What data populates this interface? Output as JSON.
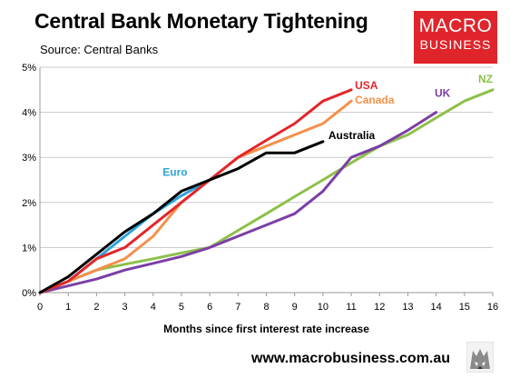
{
  "header": {
    "title": "Central Bank Monetary Tightening",
    "subtitle": "Source: Central Banks"
  },
  "logo": {
    "line1": "MACRO",
    "line2": "BUSINESS",
    "color": "#e0242b"
  },
  "footer": {
    "url": "www.macrobusiness.com.au",
    "icon": "wolf-logo-icon"
  },
  "chart_data": {
    "type": "line",
    "title": "Central Bank Monetary Tightening",
    "xlabel": "Months since first interest rate increase",
    "ylabel": "",
    "xlim": [
      0,
      16
    ],
    "ylim": [
      0,
      5
    ],
    "x_ticks": [
      "0",
      "1",
      "2",
      "3",
      "4",
      "5",
      "6",
      "7",
      "8",
      "9",
      "10",
      "11",
      "12",
      "13",
      "14",
      "15",
      "16"
    ],
    "y_ticks": [
      "0%",
      "1%",
      "2%",
      "3%",
      "4%",
      "5%"
    ],
    "grid": "horizontal",
    "legend": "inline labels",
    "series": [
      {
        "name": "Euro",
        "color": "#2ea3d8",
        "points": [
          [
            0,
            0
          ],
          [
            1,
            0.25
          ],
          [
            2,
            0.75
          ],
          [
            3,
            1.25
          ],
          [
            4,
            1.75
          ],
          [
            5,
            2.15
          ],
          [
            6,
            2.5
          ]
        ]
      },
      {
        "name": "NZ",
        "color": "#8dc04a",
        "points": [
          [
            0,
            0
          ],
          [
            1,
            0.25
          ],
          [
            2,
            0.5
          ],
          [
            3,
            0.63
          ],
          [
            4,
            0.75
          ],
          [
            5,
            0.88
          ],
          [
            6,
            1.0
          ],
          [
            7,
            1.38
          ],
          [
            8,
            1.75
          ],
          [
            9,
            2.13
          ],
          [
            10,
            2.5
          ],
          [
            11,
            2.88
          ],
          [
            12,
            3.25
          ],
          [
            13,
            3.5
          ],
          [
            14,
            3.88
          ],
          [
            15,
            4.25
          ],
          [
            16,
            4.5
          ]
        ]
      },
      {
        "name": "UK",
        "color": "#7b3fa6",
        "points": [
          [
            0,
            0
          ],
          [
            1,
            0.15
          ],
          [
            2,
            0.3
          ],
          [
            3,
            0.5
          ],
          [
            4,
            0.65
          ],
          [
            5,
            0.8
          ],
          [
            6,
            1.0
          ],
          [
            7,
            1.25
          ],
          [
            8,
            1.5
          ],
          [
            9,
            1.75
          ],
          [
            10,
            2.25
          ],
          [
            11,
            3.0
          ],
          [
            12,
            3.25
          ],
          [
            13,
            3.6
          ],
          [
            14,
            4.0
          ]
        ]
      },
      {
        "name": "Canada",
        "color": "#f4904a",
        "points": [
          [
            0,
            0
          ],
          [
            1,
            0.25
          ],
          [
            2,
            0.5
          ],
          [
            3,
            0.75
          ],
          [
            4,
            1.25
          ],
          [
            5,
            2.0
          ],
          [
            6,
            2.5
          ],
          [
            7,
            3.0
          ],
          [
            8,
            3.25
          ],
          [
            9,
            3.5
          ],
          [
            10,
            3.75
          ],
          [
            11,
            4.25
          ]
        ]
      },
      {
        "name": "USA",
        "color": "#e3262b",
        "points": [
          [
            0,
            0
          ],
          [
            1,
            0.25
          ],
          [
            2,
            0.75
          ],
          [
            3,
            1.0
          ],
          [
            4,
            1.5
          ],
          [
            5,
            2.0
          ],
          [
            6,
            2.5
          ],
          [
            7,
            3.0
          ],
          [
            8,
            3.38
          ],
          [
            9,
            3.75
          ],
          [
            10,
            4.25
          ],
          [
            11,
            4.5
          ]
        ]
      },
      {
        "name": "Australia",
        "color": "#000000",
        "points": [
          [
            0,
            0
          ],
          [
            1,
            0.35
          ],
          [
            2,
            0.85
          ],
          [
            3,
            1.35
          ],
          [
            4,
            1.75
          ],
          [
            5,
            2.25
          ],
          [
            6,
            2.5
          ],
          [
            7,
            2.75
          ],
          [
            8,
            3.1
          ],
          [
            9,
            3.1
          ],
          [
            10,
            3.35
          ]
        ]
      }
    ]
  }
}
